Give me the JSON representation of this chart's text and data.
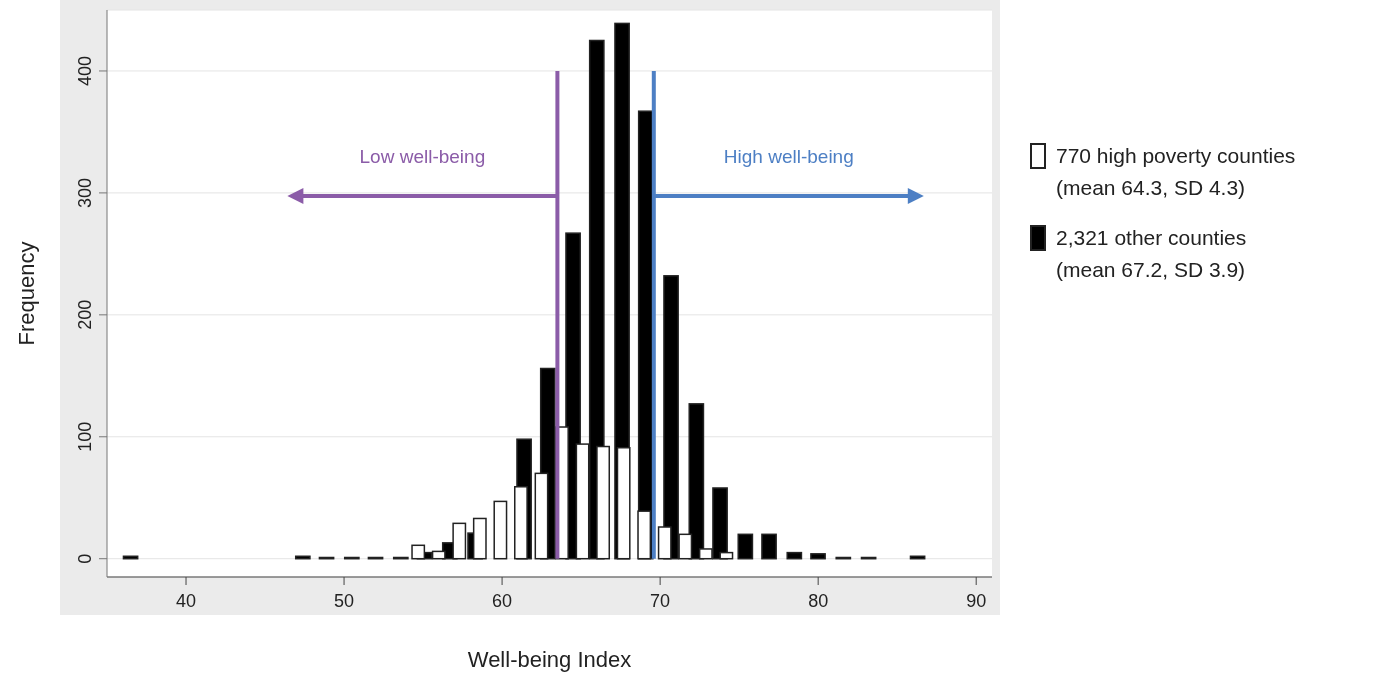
{
  "chart_data": {
    "type": "bar",
    "xlabel": "Well-being Index",
    "ylabel": "Frequency",
    "xlim": [
      35,
      91
    ],
    "xticks": [
      40,
      50,
      60,
      70,
      80,
      90
    ],
    "ylim": [
      -15,
      450
    ],
    "yticks": [
      0,
      100,
      200,
      300,
      400
    ],
    "grid": "y",
    "legend": "right",
    "series": [
      {
        "name": "2,321 other counties\n(mean 67.2, SD 3.9)",
        "color": "#000000",
        "x": [
          36.5,
          47.4,
          48.9,
          50.5,
          52.0,
          53.6,
          55.1,
          56.7,
          58.3,
          61.4,
          62.9,
          64.5,
          66.0,
          67.6,
          69.1,
          70.7,
          72.3,
          73.8,
          75.4,
          76.9,
          78.5,
          80.0,
          81.6,
          83.2,
          86.3
        ],
        "values": [
          2,
          2,
          1,
          1,
          1,
          1,
          5,
          13,
          21,
          98,
          156,
          267,
          425,
          439,
          367,
          232,
          127,
          58,
          20,
          20,
          5,
          4,
          1,
          1,
          2
        ]
      },
      {
        "name": "770 high poverty counties\n(mean 64.3, SD 4.3)",
        "color": "#ffffff",
        "x": [
          54.7,
          56.0,
          57.3,
          58.6,
          59.9,
          61.2,
          62.5,
          63.8,
          65.1,
          66.4,
          67.7,
          69.0,
          70.3,
          71.6,
          72.9,
          74.2
        ],
        "values": [
          11,
          6,
          29,
          33,
          47,
          59,
          70,
          108,
          94,
          92,
          91,
          39,
          26,
          20,
          8,
          5
        ]
      }
    ],
    "ref_lines": [
      {
        "axis": "x",
        "value": 63.5,
        "label": "Low well-being",
        "color": "#8b5ca8"
      },
      {
        "axis": "x",
        "value": 69.6,
        "label": "High well-being",
        "color": "#4d7fc4"
      }
    ]
  }
}
